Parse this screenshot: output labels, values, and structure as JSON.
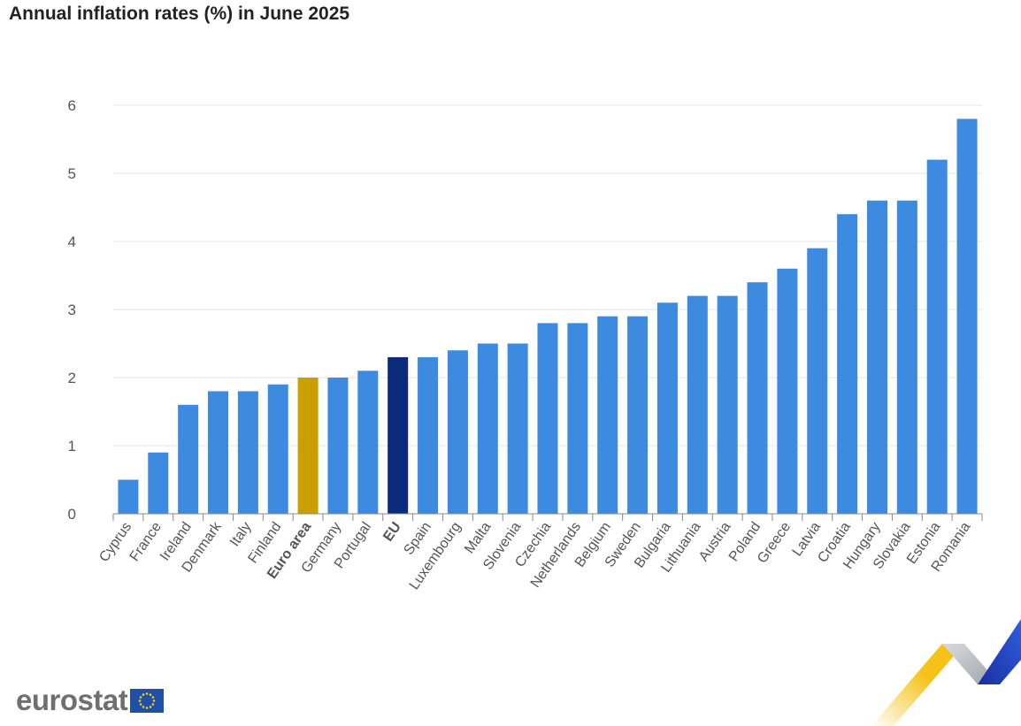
{
  "chart_data": {
    "type": "bar",
    "title": "Annual inflation rates (%) in June 2025",
    "xlabel": "",
    "ylabel": "",
    "ylim": [
      0,
      6
    ],
    "yticks": [
      0,
      1,
      2,
      3,
      4,
      5,
      6
    ],
    "grid": true,
    "categories": [
      "Cyprus",
      "France",
      "Ireland",
      "Denmark",
      "Italy",
      "Finland",
      "Euro area",
      "Germany",
      "Portugal",
      "EU",
      "Spain",
      "Luxembourg",
      "Malta",
      "Slovenia",
      "Czechia",
      "Netherlands",
      "Belgium",
      "Sweden",
      "Bulgaria",
      "Lithuania",
      "Austria",
      "Poland",
      "Greece",
      "Latvia",
      "Croatia",
      "Hungary",
      "Slovakia",
      "Estonia",
      "Romania"
    ],
    "values": [
      0.5,
      0.9,
      1.6,
      1.8,
      1.8,
      1.9,
      2.0,
      2.0,
      2.1,
      2.3,
      2.3,
      2.4,
      2.5,
      2.5,
      2.8,
      2.8,
      2.9,
      2.9,
      3.1,
      3.2,
      3.2,
      3.4,
      3.6,
      3.9,
      4.4,
      4.6,
      4.6,
      5.2,
      5.8
    ],
    "highlight": {
      "Euro area": "#c9a000",
      "EU": "#0b2a7a"
    },
    "bold_categories": [
      "Euro area",
      "EU"
    ],
    "bar_color": "#3d8be0"
  },
  "logo": {
    "text": "eurostat",
    "flag_icon": "eu-flag-icon"
  },
  "colors": {
    "flag_blue": "#1f4fa8",
    "flag_stars": "#f6d20b",
    "decor_yellow": "#f6c21a",
    "decor_grey": "#b8bcc2",
    "decor_blue": "#1d3fbf"
  }
}
